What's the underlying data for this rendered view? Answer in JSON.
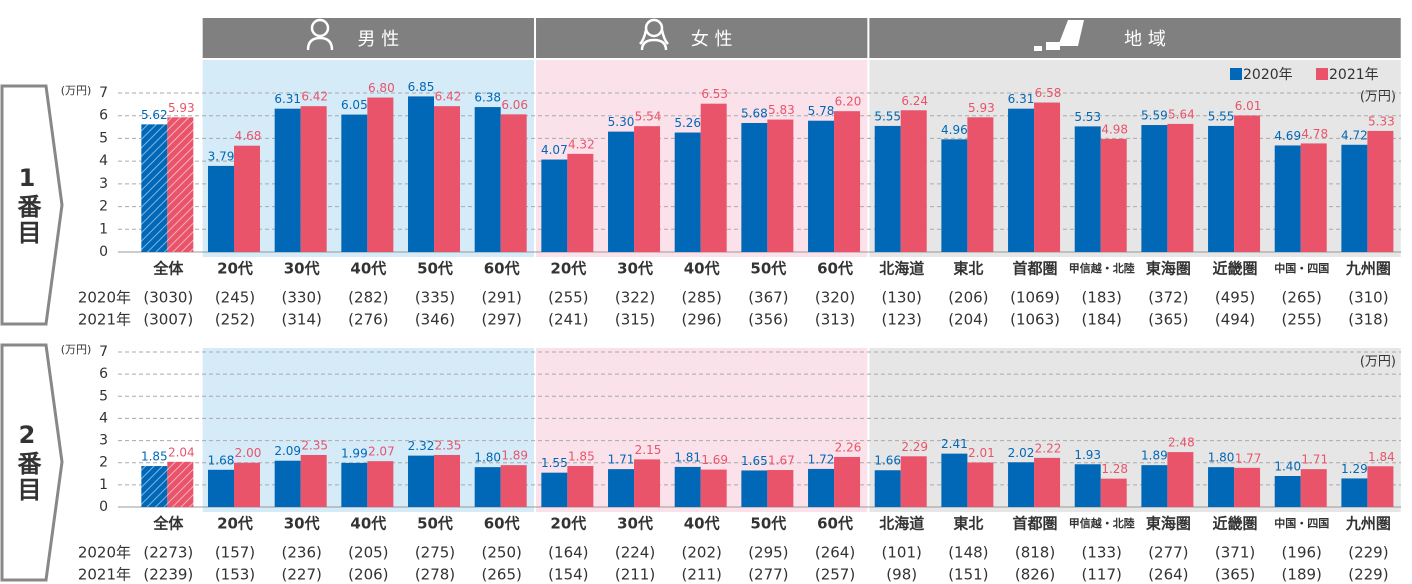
{
  "groups": [
    "男 性",
    "女 性",
    "地 域"
  ],
  "chart_data": [
    {
      "type": "bar",
      "row_label": "1番目",
      "unit": "(万円)",
      "legend": "top-right",
      "categories": [
        "全体",
        "20代",
        "30代",
        "40代",
        "50代",
        "60代",
        "20代",
        "30代",
        "40代",
        "50代",
        "60代",
        "北海道",
        "東北",
        "首都圏",
        "甲信越・北陸",
        "東海圏",
        "近畿圏",
        "中国・四国",
        "九州圏"
      ],
      "ylim": [
        0,
        7
      ],
      "yticks": [
        0,
        1,
        2,
        3,
        4,
        5,
        6,
        7
      ],
      "grid": true,
      "series": [
        {
          "name": "2020年",
          "color": "#0068b7",
          "values": [
            5.62,
            3.79,
            6.31,
            6.05,
            6.85,
            6.38,
            4.07,
            5.3,
            5.26,
            5.68,
            5.78,
            5.55,
            4.96,
            6.31,
            5.53,
            5.59,
            5.55,
            4.69,
            4.72
          ],
          "value_labels": [
            "5.62",
            "3.79",
            "6.31",
            "6.05",
            "6.85",
            "6.38",
            "4.07",
            "5.30",
            "5.26",
            "5.68",
            "5.78",
            "5.55",
            "4.96",
            "6.31",
            "5.53",
            "5.59",
            "5.55",
            "4.69",
            "4.72"
          ],
          "counts": [
            "(3030)",
            "(245)",
            "(330)",
            "(282)",
            "(335)",
            "(291)",
            "(255)",
            "(322)",
            "(285)",
            "(367)",
            "(320)",
            "(130)",
            "(206)",
            "(1069)",
            "(183)",
            "(372)",
            "(495)",
            "(265)",
            "(310)"
          ]
        },
        {
          "name": "2021年",
          "color": "#e9546b",
          "values": [
            5.93,
            4.68,
            6.42,
            6.8,
            6.42,
            6.06,
            4.32,
            5.54,
            6.53,
            5.83,
            6.2,
            6.24,
            5.93,
            6.58,
            4.98,
            5.64,
            6.01,
            4.78,
            5.33
          ],
          "value_labels": [
            "5.93",
            "4.68",
            "6.42",
            "6.80",
            "6.42",
            "6.06",
            "4.32",
            "5.54",
            "6.53",
            "5.83",
            "6.20",
            "6.24",
            "5.93",
            "6.58",
            "4.98",
            "5.64",
            "6.01",
            "4.78",
            "5.33"
          ],
          "counts": [
            "(3007)",
            "(252)",
            "(314)",
            "(276)",
            "(346)",
            "(297)",
            "(241)",
            "(315)",
            "(296)",
            "(356)",
            "(313)",
            "(123)",
            "(204)",
            "(1063)",
            "(184)",
            "(365)",
            "(494)",
            "(255)",
            "(318)"
          ]
        }
      ]
    },
    {
      "type": "bar",
      "row_label": "2番目",
      "unit": "(万円)",
      "categories": [
        "全体",
        "20代",
        "30代",
        "40代",
        "50代",
        "60代",
        "20代",
        "30代",
        "40代",
        "50代",
        "60代",
        "北海道",
        "東北",
        "首都圏",
        "甲信越・北陸",
        "東海圏",
        "近畿圏",
        "中国・四国",
        "九州圏"
      ],
      "ylim": [
        0,
        7
      ],
      "yticks": [
        0,
        1,
        2,
        3,
        4,
        5,
        6,
        7
      ],
      "grid": true,
      "series": [
        {
          "name": "2020年",
          "color": "#0068b7",
          "values": [
            1.85,
            1.68,
            2.09,
            1.99,
            2.32,
            1.8,
            1.55,
            1.71,
            1.81,
            1.65,
            1.72,
            1.66,
            2.41,
            2.02,
            1.93,
            1.89,
            1.8,
            1.4,
            1.29
          ],
          "value_labels": [
            "1.85",
            "1.68",
            "2.09",
            "1.99",
            "2.32",
            "1.80",
            "1.55",
            "1.71",
            "1.81",
            "1.65",
            "1.72",
            "1.66",
            "2.41",
            "2.02",
            "1.93",
            "1.89",
            "1.80",
            "1.40",
            "1.29"
          ],
          "counts": [
            "(2273)",
            "(157)",
            "(236)",
            "(205)",
            "(275)",
            "(250)",
            "(164)",
            "(224)",
            "(202)",
            "(295)",
            "(264)",
            "(101)",
            "(148)",
            "(818)",
            "(133)",
            "(277)",
            "(371)",
            "(196)",
            "(229)"
          ]
        },
        {
          "name": "2021年",
          "color": "#e9546b",
          "values": [
            2.04,
            2.0,
            2.35,
            2.07,
            2.35,
            1.89,
            1.85,
            2.15,
            1.69,
            1.67,
            2.26,
            2.29,
            2.01,
            2.22,
            1.28,
            2.48,
            1.77,
            1.71,
            1.84
          ],
          "value_labels": [
            "2.04",
            "2.00",
            "2.35",
            "2.07",
            "2.35",
            "1.89",
            "1.85",
            "2.15",
            "1.69",
            "1.67",
            "2.26",
            "2.29",
            "2.01",
            "2.22",
            "1.28",
            "2.48",
            "1.77",
            "1.71",
            "1.84"
          ],
          "counts": [
            "(2239)",
            "(153)",
            "(227)",
            "(206)",
            "(278)",
            "(265)",
            "(154)",
            "(211)",
            "(211)",
            "(277)",
            "(257)",
            "(98)",
            "(151)",
            "(826)",
            "(117)",
            "(264)",
            "(365)",
            "(189)",
            "(229)"
          ]
        }
      ]
    }
  ]
}
